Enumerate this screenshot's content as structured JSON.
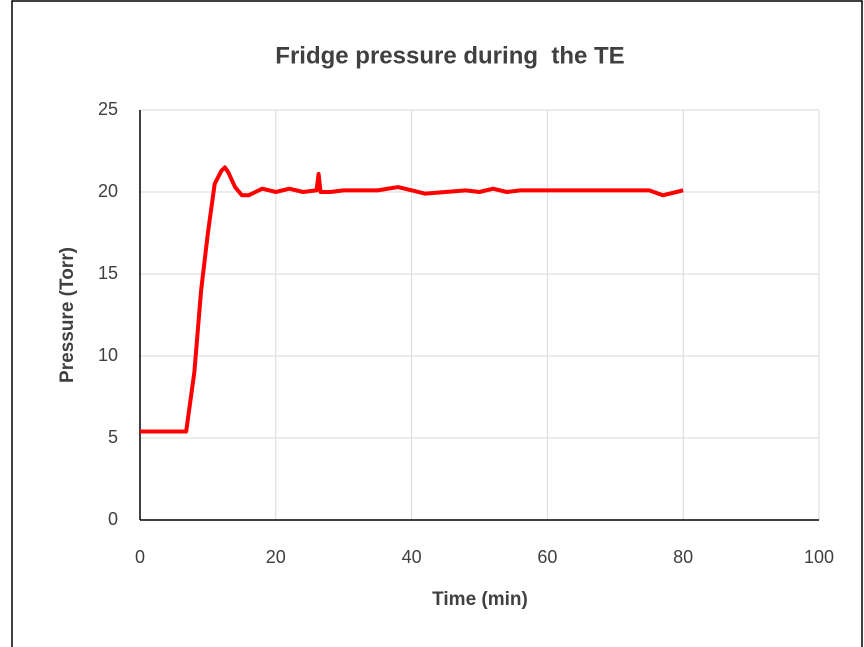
{
  "chart_data": {
    "type": "line",
    "title": "Fridge pressure during  the TE",
    "x_label": "Time (min)",
    "y_label": "Pressure (Torr)",
    "xlim": [
      0,
      100
    ],
    "xticks": [
      0,
      20,
      40,
      60,
      80,
      100
    ],
    "ylim": [
      0,
      25
    ],
    "yticks": [
      0,
      5,
      10,
      15,
      20,
      25
    ],
    "grid": true,
    "series": [
      {
        "name": "Pressure",
        "color": "#ff0000",
        "x": [
          0,
          6.8,
          8,
          9,
          10,
          11,
          12,
          12.5,
          13,
          14,
          15,
          16,
          17,
          18,
          19,
          20,
          22,
          24,
          26,
          26.3,
          26.6,
          28,
          30,
          35,
          38,
          40,
          42,
          45,
          48,
          50,
          52,
          54,
          56,
          60,
          70,
          75,
          77,
          79,
          80
        ],
        "values": [
          5.4,
          5.4,
          9,
          14,
          17.5,
          20.5,
          21.3,
          21.5,
          21.2,
          20.3,
          19.8,
          19.8,
          20.0,
          20.2,
          20.1,
          20.0,
          20.2,
          20.0,
          20.1,
          21.1,
          20.0,
          20.0,
          20.1,
          20.1,
          20.3,
          20.1,
          19.9,
          20.0,
          20.1,
          20.0,
          20.2,
          20.0,
          20.1,
          20.1,
          20.1,
          20.1,
          19.8,
          20.0,
          20.1
        ]
      }
    ]
  }
}
